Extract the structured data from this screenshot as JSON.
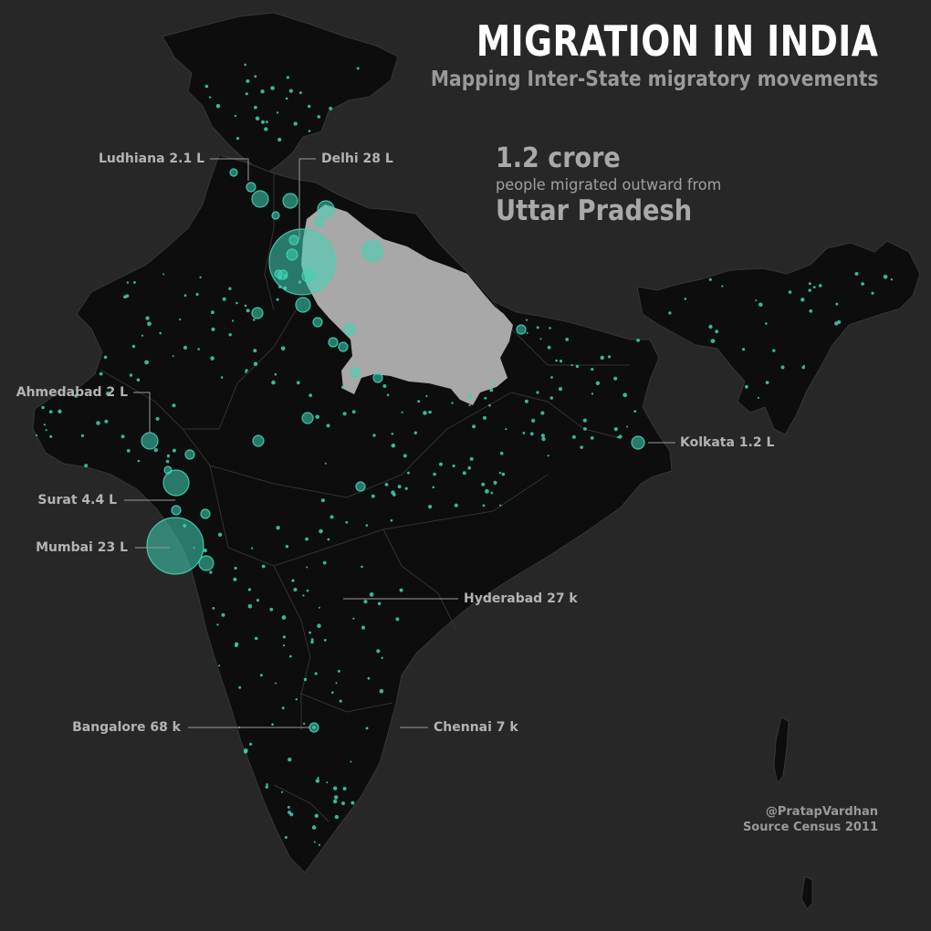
{
  "header": {
    "title": "MIGRATION IN INDIA",
    "subtitle": "Mapping Inter-State migratory movements"
  },
  "highlight": {
    "value": "1.2 crore",
    "description": "people migrated outward from",
    "region": "Uttar Pradesh"
  },
  "credit": {
    "author": "@PratapVardhan",
    "source": "Source Census 2011"
  },
  "colors": {
    "background": "#272727",
    "land": "#0d0d0d",
    "border": "#3a3a3a",
    "highlight_state": "#a8a8a8",
    "bubble": "#3fd4b6"
  },
  "cities": [
    {
      "name": "Ludhiana",
      "label": "Ludhiana 2.1 L"
    },
    {
      "name": "Delhi",
      "label": "Delhi 28 L"
    },
    {
      "name": "Ahmedabad",
      "label": "Ahmedabad 2 L"
    },
    {
      "name": "Surat",
      "label": "Surat 4.4 L"
    },
    {
      "name": "Mumbai",
      "label": "Mumbai 23 L"
    },
    {
      "name": "Kolkata",
      "label": "Kolkata 1.2 L"
    },
    {
      "name": "Hyderabad",
      "label": "Hyderabad 27 k"
    },
    {
      "name": "Bangalore",
      "label": "Bangalore 68 k"
    },
    {
      "name": "Chennai",
      "label": "Chennai 7 k"
    }
  ]
}
